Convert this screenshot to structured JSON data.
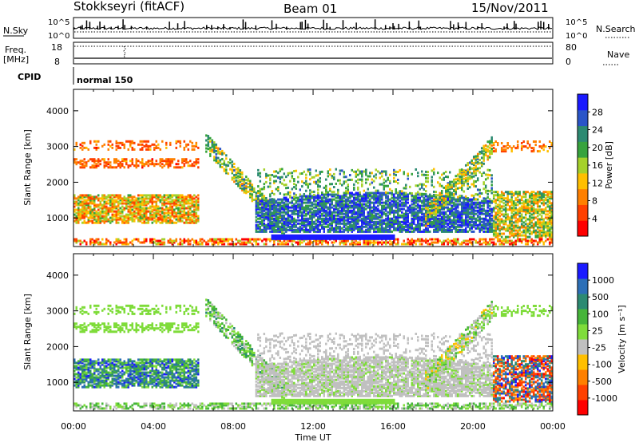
{
  "header": {
    "station": "Stokkseyri (fitACF)",
    "beam": "Beam 01",
    "date": "15/Nov/2011"
  },
  "aux_panels": {
    "nsky_label": "N.Sky",
    "nsearch_label": "N.Search",
    "nsky_ticks": [
      "10^5",
      "10^0"
    ],
    "nsky_right_ticks": [
      "10^5",
      "10^0"
    ],
    "freq_label_1": "Freq.",
    "freq_label_2": "[MHz]",
    "freq_ticks": [
      "18",
      "8"
    ],
    "nave_label": "Nave",
    "nave_ticks": [
      "80",
      "0"
    ],
    "cpid_label": "CPID",
    "cpid_value": "normal 150"
  },
  "colors": {
    "power_scale": [
      "#1a1aff",
      "#2a55c8",
      "#2c8a72",
      "#37a33d",
      "#a5d12a",
      "#ffbf00",
      "#ff8000",
      "#ff4000",
      "#ff0000"
    ],
    "velocity_scale": [
      "#1a1aff",
      "#2c6fb7",
      "#2c8a72",
      "#46b53a",
      "#7fdc3a",
      "#c0c0c0",
      "#ffbf00",
      "#ff8000",
      "#ff4000",
      "#ff0000"
    ]
  },
  "chart_data": [
    {
      "type": "heatmap",
      "name": "Power",
      "ylabel": "Slant Range [km]",
      "y_ticks": [
        "4000",
        "3000",
        "2000",
        "1000"
      ],
      "ylim": [
        200,
        4600
      ],
      "colorbar_label": "Power [dB]",
      "colorbar_ticks": [
        "28",
        "24",
        "20",
        "16",
        "12",
        "8",
        "4"
      ],
      "clim": [
        0,
        32
      ]
    },
    {
      "type": "heatmap",
      "name": "Velocity",
      "ylabel": "Slant Range [km]",
      "y_ticks": [
        "4000",
        "3000",
        "2000",
        "1000"
      ],
      "ylim": [
        200,
        4600
      ],
      "colorbar_label": "Velocity [m s⁻¹]",
      "colorbar_ticks": [
        "1000",
        "500",
        "100",
        "25",
        "-25",
        "-100",
        "-500",
        "-1000"
      ]
    }
  ],
  "x_axis": {
    "ticks": [
      "00:00",
      "04:00",
      "08:00",
      "12:00",
      "16:00",
      "20:00",
      "00:00"
    ],
    "label": "Time UT"
  }
}
